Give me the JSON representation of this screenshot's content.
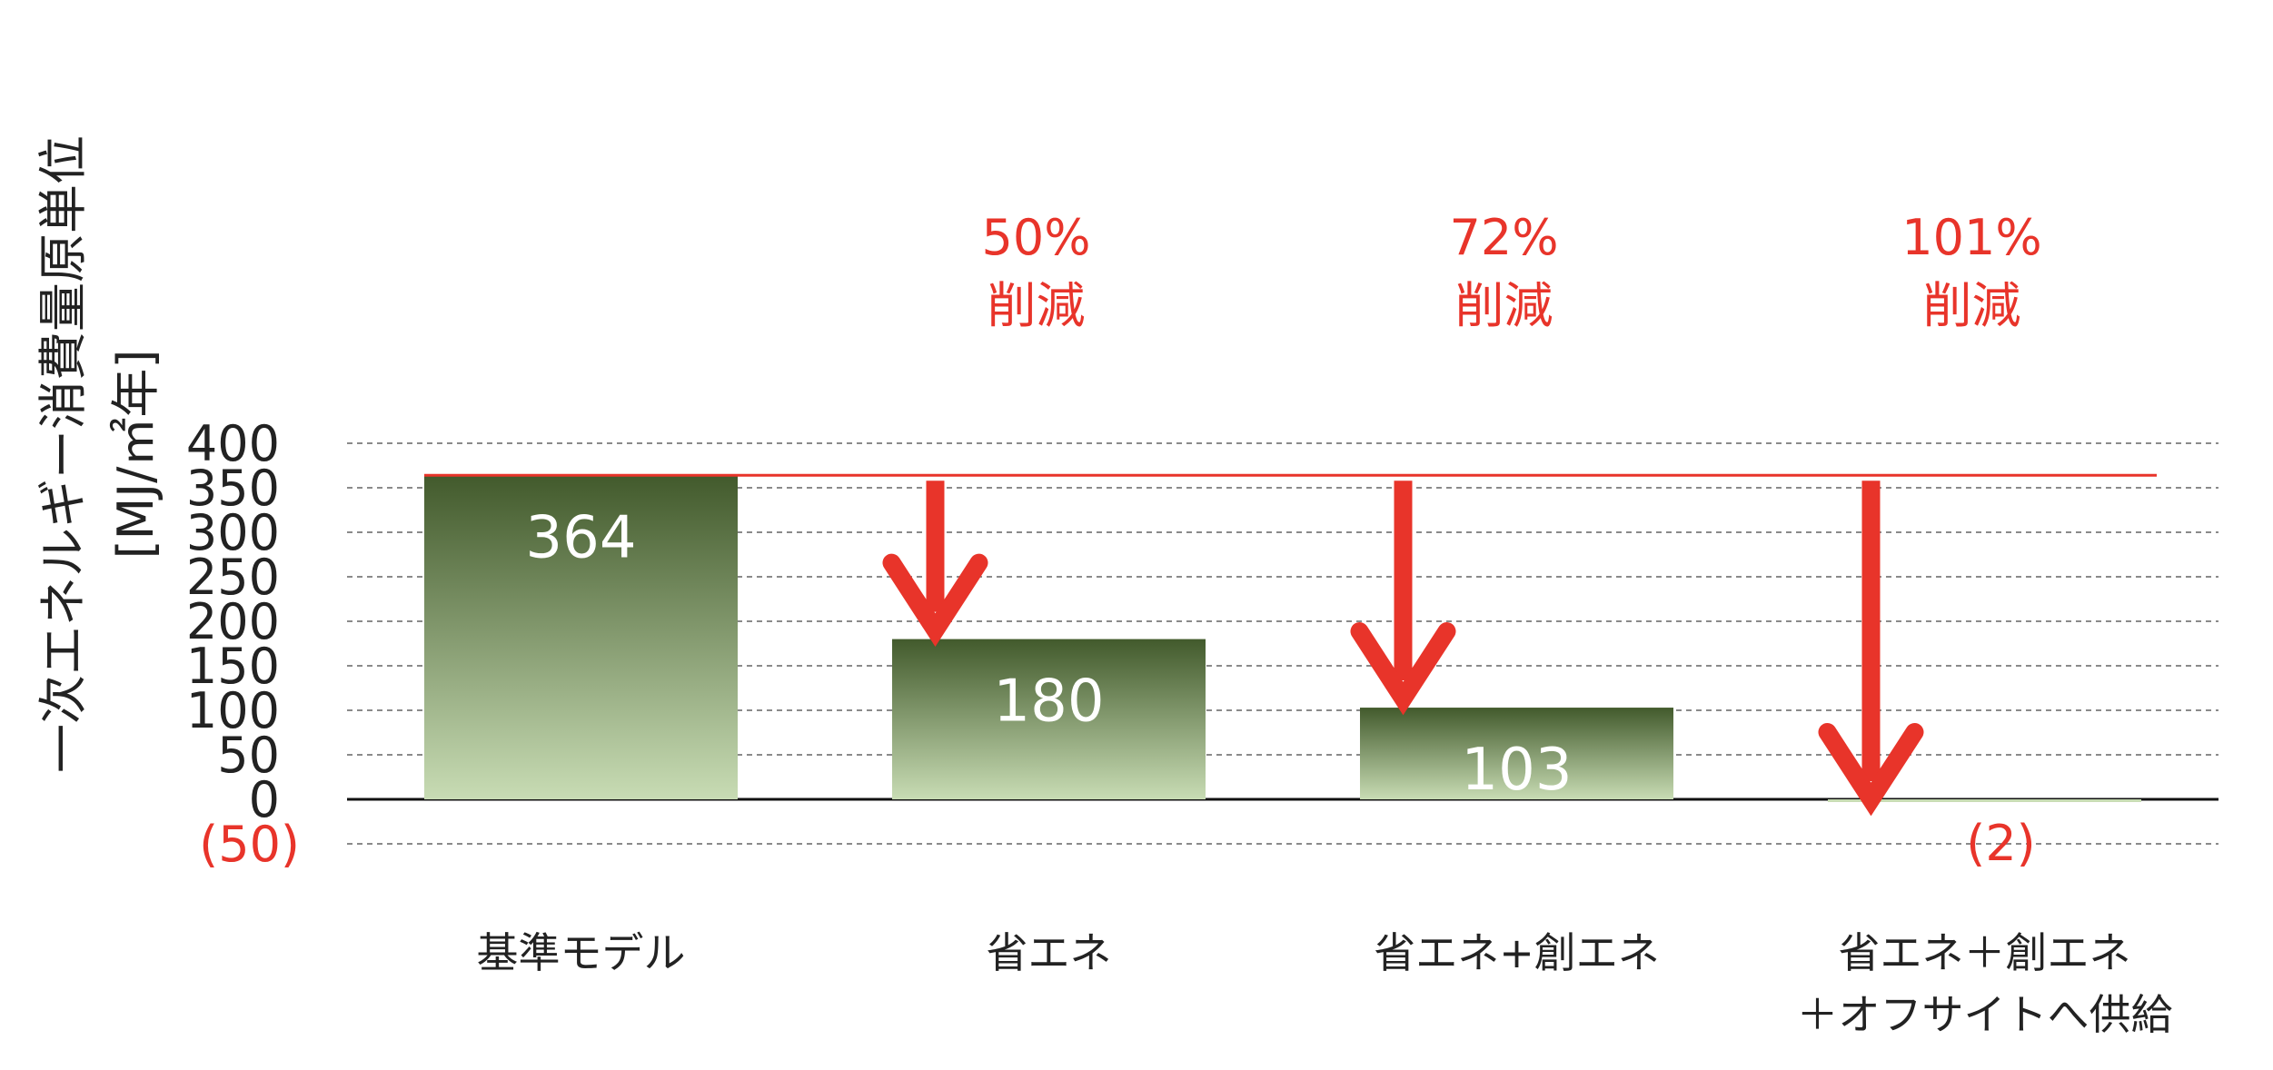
{
  "chart_data": {
    "type": "bar",
    "ylabel": "一次エネルギー消費量原単位",
    "yunit": "[MJ/㎡年]",
    "ylim": [
      -50,
      400
    ],
    "yticks": [
      400,
      350,
      300,
      250,
      200,
      150,
      100,
      50,
      0
    ],
    "yticks_negative": [
      {
        "value": -50,
        "label": "(50)"
      }
    ],
    "grid": true,
    "categories": [
      [
        "基準モデル"
      ],
      [
        "省エネ"
      ],
      [
        "省エネ+創エネ"
      ],
      [
        "省エネ＋創エネ",
        "＋オフサイトへ供給"
      ]
    ],
    "values": [
      364,
      180,
      103,
      -2
    ],
    "value_labels": [
      "364",
      "180",
      "103",
      "(2)"
    ],
    "baseline_value": 364,
    "reductions": [
      {
        "from_category": 1,
        "percent_label": "50%",
        "text": "削減"
      },
      {
        "from_category": 2,
        "percent_label": "72%",
        "text": "削減"
      },
      {
        "from_category": 3,
        "percent_label": "101%",
        "text": "削減"
      }
    ],
    "colors": {
      "bar_top": "#425a2c",
      "bar_bottom": "#c8dcb4",
      "accent": "#e8342a",
      "grid": "#8a8a8a",
      "axis": "#111111"
    }
  }
}
